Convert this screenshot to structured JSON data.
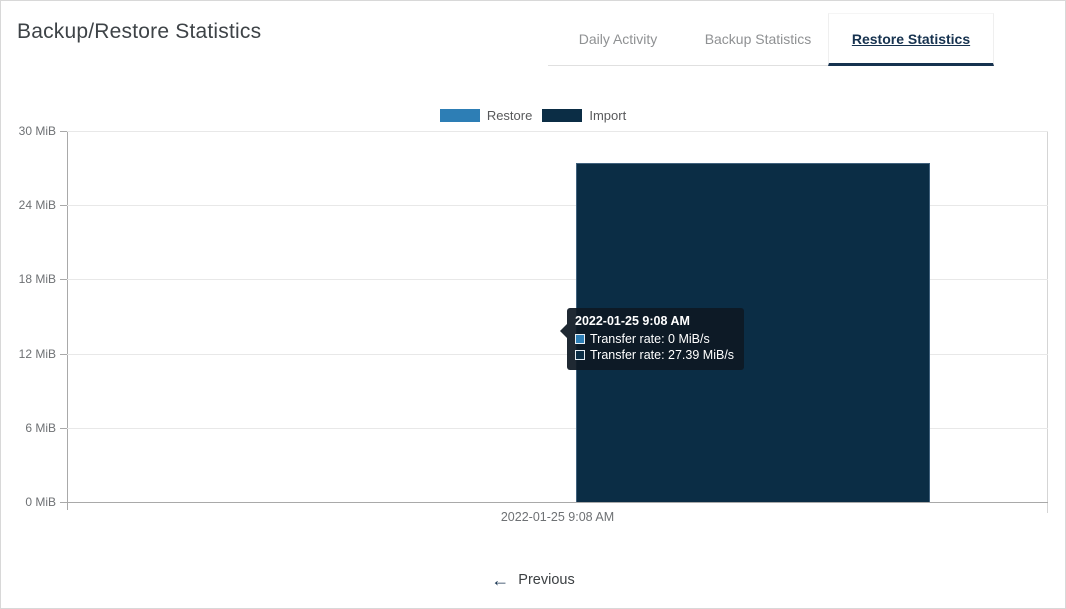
{
  "header": {
    "title": "Backup/Restore Statistics"
  },
  "tabs": [
    {
      "label": "Daily Activity",
      "active": false
    },
    {
      "label": "Backup Statistics",
      "active": false
    },
    {
      "label": "Restore Statistics",
      "active": true
    }
  ],
  "chart_data": {
    "type": "bar",
    "title": "",
    "categories": [
      "2022-01-25 9:08 AM"
    ],
    "series": [
      {
        "name": "Restore",
        "color": "#2d7eb5",
        "values": [
          0
        ]
      },
      {
        "name": "Import",
        "color": "#0b2d45",
        "values": [
          27.39
        ]
      }
    ],
    "unit": "MiB/s",
    "ylim": [
      0,
      30
    ],
    "yticks": [
      0,
      6,
      12,
      18,
      24,
      30
    ],
    "ytick_labels": [
      "0 MiB",
      "6 MiB",
      "12 MiB",
      "18 MiB",
      "24 MiB",
      "30 MiB"
    ],
    "grid": true,
    "legend_position": "top-center"
  },
  "tooltip": {
    "title": "2022-01-25 9:08 AM",
    "rows": [
      {
        "color": "#2d7eb5",
        "label": "Transfer rate: 0 MiB/s"
      },
      {
        "color": "#0b2d45",
        "label": "Transfer rate: 27.39 MiB/s"
      }
    ]
  },
  "xaxis": {
    "label": "2022-01-25 9:08 AM"
  },
  "footer": {
    "previous_label": "Previous",
    "previous_icon": "←"
  },
  "colors": {
    "accent": "#16324f",
    "restore": "#2d7eb5",
    "import": "#0b2d45"
  }
}
